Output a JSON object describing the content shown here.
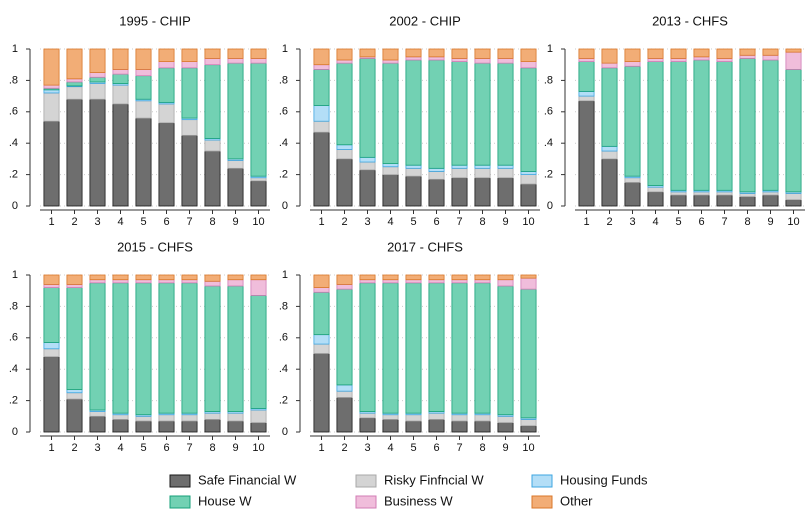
{
  "chart_data": [
    {
      "type": "bar",
      "stacked": true,
      "title": "1995 - CHIP",
      "categories": [
        "1",
        "2",
        "3",
        "4",
        "5",
        "6",
        "7",
        "8",
        "9",
        "10"
      ],
      "ylim": [
        0,
        1
      ],
      "yticks": [
        0,
        {
          "value": 0.2,
          "label": ".2"
        },
        {
          "value": 0.4,
          "label": ".4"
        },
        {
          "value": 0.6,
          "label": ".6"
        },
        {
          "value": 0.8,
          "label": ".8"
        },
        1
      ],
      "grid": true,
      "series": [
        {
          "name": "Safe Financial W",
          "color": "#6e6e6e",
          "edgecolor": "#1a1a1a",
          "values": [
            0.54,
            0.68,
            0.68,
            0.65,
            0.56,
            0.53,
            0.45,
            0.35,
            0.24,
            0.16
          ]
        },
        {
          "name": "Risky Finfncial W",
          "color": "#d4d4d4",
          "edgecolor": "#a8a8a8",
          "values": [
            0.18,
            0.08,
            0.1,
            0.12,
            0.11,
            0.12,
            0.1,
            0.07,
            0.05,
            0.02
          ]
        },
        {
          "name": "Housing Funds",
          "color": "#b3def7",
          "edgecolor": "#3ea6e0",
          "values": [
            0.02,
            0.005,
            0.01,
            0.01,
            0.01,
            0.01,
            0.01,
            0.01,
            0.01,
            0.01
          ]
        },
        {
          "name": "House W",
          "color": "#72d1b3",
          "edgecolor": "#17a079",
          "values": [
            0.01,
            0.025,
            0.03,
            0.06,
            0.15,
            0.22,
            0.32,
            0.47,
            0.61,
            0.72
          ]
        },
        {
          "name": "Business W",
          "color": "#f0bddb",
          "edgecolor": "#d27db6",
          "values": [
            0.02,
            0.02,
            0.03,
            0.03,
            0.04,
            0.04,
            0.04,
            0.04,
            0.03,
            0.03
          ]
        },
        {
          "name": "Other",
          "color": "#f2ad76",
          "edgecolor": "#d9772a",
          "values": [
            0.23,
            0.19,
            0.15,
            0.13,
            0.13,
            0.08,
            0.08,
            0.06,
            0.06,
            0.06
          ]
        }
      ]
    },
    {
      "type": "bar",
      "stacked": true,
      "title": "2002 - CHIP",
      "categories": [
        "1",
        "2",
        "3",
        "4",
        "5",
        "6",
        "7",
        "8",
        "9",
        "10"
      ],
      "ylim": [
        0,
        1
      ],
      "yticks": [
        0,
        {
          "value": 0.2,
          "label": ".2"
        },
        {
          "value": 0.4,
          "label": ".4"
        },
        {
          "value": 0.6,
          "label": ".6"
        },
        {
          "value": 0.8,
          "label": ".8"
        },
        1
      ],
      "grid": true,
      "series": [
        {
          "name": "Safe Financial W",
          "color": "#6e6e6e",
          "edgecolor": "#1a1a1a",
          "values": [
            0.47,
            0.3,
            0.23,
            0.2,
            0.19,
            0.17,
            0.18,
            0.18,
            0.18,
            0.14
          ]
        },
        {
          "name": "Risky Finfncial W",
          "color": "#d4d4d4",
          "edgecolor": "#a8a8a8",
          "values": [
            0.07,
            0.06,
            0.05,
            0.05,
            0.05,
            0.05,
            0.06,
            0.06,
            0.06,
            0.06
          ]
        },
        {
          "name": "Housing Funds",
          "color": "#b3def7",
          "edgecolor": "#3ea6e0",
          "values": [
            0.1,
            0.03,
            0.03,
            0.02,
            0.02,
            0.02,
            0.02,
            0.02,
            0.02,
            0.02
          ]
        },
        {
          "name": "House W",
          "color": "#72d1b3",
          "edgecolor": "#17a079",
          "values": [
            0.23,
            0.52,
            0.63,
            0.64,
            0.67,
            0.69,
            0.66,
            0.65,
            0.65,
            0.66
          ]
        },
        {
          "name": "Business W",
          "color": "#f0bddb",
          "edgecolor": "#d27db6",
          "values": [
            0.03,
            0.02,
            0.01,
            0.02,
            0.02,
            0.02,
            0.02,
            0.03,
            0.03,
            0.04
          ]
        },
        {
          "name": "Other",
          "color": "#f2ad76",
          "edgecolor": "#d9772a",
          "values": [
            0.1,
            0.07,
            0.05,
            0.07,
            0.05,
            0.05,
            0.06,
            0.06,
            0.06,
            0.08
          ]
        }
      ]
    },
    {
      "type": "bar",
      "stacked": true,
      "title": "2013 - CHFS",
      "categories": [
        "1",
        "2",
        "3",
        "4",
        "5",
        "6",
        "7",
        "8",
        "9",
        "10"
      ],
      "ylim": [
        0,
        1
      ],
      "yticks": [
        0,
        {
          "value": 0.2,
          "label": ".2"
        },
        {
          "value": 0.4,
          "label": ".4"
        },
        {
          "value": 0.6,
          "label": ".6"
        },
        {
          "value": 0.8,
          "label": ".8"
        },
        1
      ],
      "grid": true,
      "series": [
        {
          "name": "Safe Financial W",
          "color": "#6e6e6e",
          "edgecolor": "#1a1a1a",
          "values": [
            0.67,
            0.3,
            0.15,
            0.09,
            0.07,
            0.07,
            0.07,
            0.06,
            0.07,
            0.04
          ]
        },
        {
          "name": "Risky Finfncial W",
          "color": "#d4d4d4",
          "edgecolor": "#a8a8a8",
          "values": [
            0.03,
            0.05,
            0.03,
            0.03,
            0.02,
            0.02,
            0.02,
            0.02,
            0.02,
            0.04
          ]
        },
        {
          "name": "Housing Funds",
          "color": "#b3def7",
          "edgecolor": "#3ea6e0",
          "values": [
            0.03,
            0.03,
            0.01,
            0.01,
            0.01,
            0.01,
            0.01,
            0.01,
            0.01,
            0.01
          ]
        },
        {
          "name": "House W",
          "color": "#72d1b3",
          "edgecolor": "#17a079",
          "values": [
            0.19,
            0.5,
            0.7,
            0.79,
            0.82,
            0.83,
            0.82,
            0.85,
            0.83,
            0.78
          ]
        },
        {
          "name": "Business W",
          "color": "#f0bddb",
          "edgecolor": "#d27db6",
          "values": [
            0.02,
            0.03,
            0.03,
            0.02,
            0.02,
            0.02,
            0.02,
            0.02,
            0.03,
            0.11
          ]
        },
        {
          "name": "Other",
          "color": "#f2ad76",
          "edgecolor": "#d9772a",
          "values": [
            0.06,
            0.09,
            0.08,
            0.06,
            0.06,
            0.05,
            0.06,
            0.04,
            0.04,
            0.02
          ]
        }
      ]
    },
    {
      "type": "bar",
      "stacked": true,
      "title": "2015 - CHFS",
      "categories": [
        "1",
        "2",
        "3",
        "4",
        "5",
        "6",
        "7",
        "8",
        "9",
        "10"
      ],
      "ylim": [
        0,
        1
      ],
      "yticks": [
        0,
        {
          "value": 0.2,
          "label": ".2"
        },
        {
          "value": 0.4,
          "label": ".4"
        },
        {
          "value": 0.6,
          "label": ".6"
        },
        {
          "value": 0.8,
          "label": ".8"
        },
        1
      ],
      "grid": true,
      "series": [
        {
          "name": "Safe Financial W",
          "color": "#6e6e6e",
          "edgecolor": "#1a1a1a",
          "values": [
            0.48,
            0.21,
            0.1,
            0.08,
            0.07,
            0.07,
            0.07,
            0.08,
            0.07,
            0.06
          ]
        },
        {
          "name": "Risky Finfncial W",
          "color": "#d4d4d4",
          "edgecolor": "#a8a8a8",
          "values": [
            0.05,
            0.04,
            0.03,
            0.03,
            0.03,
            0.04,
            0.04,
            0.04,
            0.05,
            0.08
          ]
        },
        {
          "name": "Housing Funds",
          "color": "#b3def7",
          "edgecolor": "#3ea6e0",
          "values": [
            0.04,
            0.02,
            0.01,
            0.01,
            0.01,
            0.01,
            0.01,
            0.01,
            0.01,
            0.01
          ]
        },
        {
          "name": "House W",
          "color": "#72d1b3",
          "edgecolor": "#17a079",
          "values": [
            0.35,
            0.65,
            0.81,
            0.83,
            0.84,
            0.83,
            0.83,
            0.8,
            0.8,
            0.72
          ]
        },
        {
          "name": "Business W",
          "color": "#f0bddb",
          "edgecolor": "#d27db6",
          "values": [
            0.02,
            0.02,
            0.02,
            0.02,
            0.02,
            0.02,
            0.02,
            0.03,
            0.04,
            0.1
          ]
        },
        {
          "name": "Other",
          "color": "#f2ad76",
          "edgecolor": "#d9772a",
          "values": [
            0.06,
            0.06,
            0.03,
            0.03,
            0.03,
            0.03,
            0.03,
            0.04,
            0.03,
            0.03
          ]
        }
      ]
    },
    {
      "type": "bar",
      "stacked": true,
      "title": "2017 - CHFS",
      "categories": [
        "1",
        "2",
        "3",
        "4",
        "5",
        "6",
        "7",
        "8",
        "9",
        "10"
      ],
      "ylim": [
        0,
        1
      ],
      "yticks": [
        0,
        {
          "value": 0.2,
          "label": ".2"
        },
        {
          "value": 0.4,
          "label": ".4"
        },
        {
          "value": 0.6,
          "label": ".6"
        },
        {
          "value": 0.8,
          "label": ".8"
        },
        1
      ],
      "grid": true,
      "series": [
        {
          "name": "Safe Financial W",
          "color": "#6e6e6e",
          "edgecolor": "#1a1a1a",
          "values": [
            0.5,
            0.22,
            0.09,
            0.08,
            0.07,
            0.08,
            0.07,
            0.07,
            0.06,
            0.04
          ]
        },
        {
          "name": "Risky Finfncial W",
          "color": "#d4d4d4",
          "edgecolor": "#a8a8a8",
          "values": [
            0.06,
            0.04,
            0.03,
            0.03,
            0.04,
            0.04,
            0.04,
            0.04,
            0.04,
            0.04
          ]
        },
        {
          "name": "Housing Funds",
          "color": "#b3def7",
          "edgecolor": "#3ea6e0",
          "values": [
            0.06,
            0.04,
            0.01,
            0.01,
            0.01,
            0.01,
            0.01,
            0.01,
            0.01,
            0.01
          ]
        },
        {
          "name": "House W",
          "color": "#72d1b3",
          "edgecolor": "#17a079",
          "values": [
            0.27,
            0.61,
            0.82,
            0.83,
            0.83,
            0.82,
            0.83,
            0.83,
            0.82,
            0.82
          ]
        },
        {
          "name": "Business W",
          "color": "#f0bddb",
          "edgecolor": "#d27db6",
          "values": [
            0.03,
            0.03,
            0.02,
            0.02,
            0.02,
            0.02,
            0.02,
            0.02,
            0.04,
            0.07
          ]
        },
        {
          "name": "Other",
          "color": "#f2ad76",
          "edgecolor": "#d9772a",
          "values": [
            0.08,
            0.06,
            0.03,
            0.03,
            0.03,
            0.03,
            0.03,
            0.03,
            0.03,
            0.02
          ]
        }
      ]
    }
  ]
}
